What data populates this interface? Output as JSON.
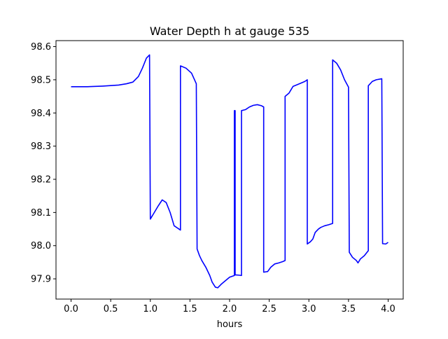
{
  "chart_data": {
    "type": "line",
    "title": "Water Depth h at gauge 535",
    "xlabel": "hours",
    "ylabel": "",
    "xlim": [
      -0.19,
      4.19
    ],
    "ylim": [
      97.839,
      98.618
    ],
    "xticks": [
      0.0,
      0.5,
      1.0,
      1.5,
      2.0,
      2.5,
      3.0,
      3.5,
      4.0
    ],
    "xtick_labels": [
      "0.0",
      "0.5",
      "1.0",
      "1.5",
      "2.0",
      "2.5",
      "3.0",
      "3.5",
      "4.0"
    ],
    "yticks": [
      97.9,
      98.0,
      98.1,
      98.2,
      98.3,
      98.4,
      98.5,
      98.6
    ],
    "ytick_labels": [
      "97.9",
      "98.0",
      "98.1",
      "98.2",
      "98.3",
      "98.4",
      "98.5",
      "98.6"
    ],
    "grid": false,
    "legend": "none",
    "series": [
      {
        "color": "#0000ff",
        "points": [
          [
            0.0,
            98.479
          ],
          [
            0.2,
            98.479
          ],
          [
            0.4,
            98.481
          ],
          [
            0.6,
            98.484
          ],
          [
            0.7,
            98.488
          ],
          [
            0.78,
            98.493
          ],
          [
            0.85,
            98.51
          ],
          [
            0.9,
            98.535
          ],
          [
            0.95,
            98.565
          ],
          [
            0.99,
            98.575
          ],
          [
            1.0,
            98.08
          ],
          [
            1.05,
            98.1
          ],
          [
            1.1,
            98.12
          ],
          [
            1.15,
            98.138
          ],
          [
            1.2,
            98.13
          ],
          [
            1.25,
            98.1
          ],
          [
            1.3,
            98.06
          ],
          [
            1.38,
            98.047
          ],
          [
            1.38,
            98.542
          ],
          [
            1.45,
            98.535
          ],
          [
            1.52,
            98.52
          ],
          [
            1.58,
            98.488
          ],
          [
            1.59,
            97.99
          ],
          [
            1.62,
            97.97
          ],
          [
            1.65,
            97.955
          ],
          [
            1.7,
            97.935
          ],
          [
            1.75,
            97.91
          ],
          [
            1.78,
            97.89
          ],
          [
            1.82,
            97.875
          ],
          [
            1.85,
            97.873
          ],
          [
            1.9,
            97.885
          ],
          [
            1.95,
            97.895
          ],
          [
            2.0,
            97.905
          ],
          [
            2.06,
            97.91
          ],
          [
            2.06,
            98.407
          ],
          [
            2.07,
            98.407
          ],
          [
            2.07,
            97.912
          ],
          [
            2.12,
            97.911
          ],
          [
            2.15,
            97.91
          ],
          [
            2.15,
            98.407
          ],
          [
            2.2,
            98.41
          ],
          [
            2.25,
            98.418
          ],
          [
            2.3,
            98.423
          ],
          [
            2.35,
            98.425
          ],
          [
            2.4,
            98.422
          ],
          [
            2.43,
            98.418
          ],
          [
            2.43,
            97.92
          ],
          [
            2.48,
            97.922
          ],
          [
            2.52,
            97.935
          ],
          [
            2.57,
            97.945
          ],
          [
            2.62,
            97.948
          ],
          [
            2.67,
            97.952
          ],
          [
            2.7,
            97.955
          ],
          [
            2.7,
            98.45
          ],
          [
            2.75,
            98.46
          ],
          [
            2.8,
            98.48
          ],
          [
            2.88,
            98.488
          ],
          [
            2.95,
            98.495
          ],
          [
            2.98,
            98.5
          ],
          [
            2.98,
            98.005
          ],
          [
            3.02,
            98.012
          ],
          [
            3.05,
            98.02
          ],
          [
            3.08,
            98.04
          ],
          [
            3.12,
            98.05
          ],
          [
            3.15,
            98.055
          ],
          [
            3.2,
            98.06
          ],
          [
            3.25,
            98.063
          ],
          [
            3.3,
            98.067
          ],
          [
            3.3,
            98.56
          ],
          [
            3.35,
            98.55
          ],
          [
            3.4,
            98.53
          ],
          [
            3.45,
            98.5
          ],
          [
            3.5,
            98.478
          ],
          [
            3.51,
            97.98
          ],
          [
            3.55,
            97.965
          ],
          [
            3.6,
            97.955
          ],
          [
            3.62,
            97.948
          ],
          [
            3.65,
            97.96
          ],
          [
            3.7,
            97.97
          ],
          [
            3.75,
            97.985
          ],
          [
            3.75,
            98.482
          ],
          [
            3.8,
            98.495
          ],
          [
            3.85,
            98.5
          ],
          [
            3.92,
            98.503
          ],
          [
            3.93,
            98.006
          ],
          [
            3.97,
            98.005
          ],
          [
            4.0,
            98.01
          ]
        ]
      }
    ]
  }
}
